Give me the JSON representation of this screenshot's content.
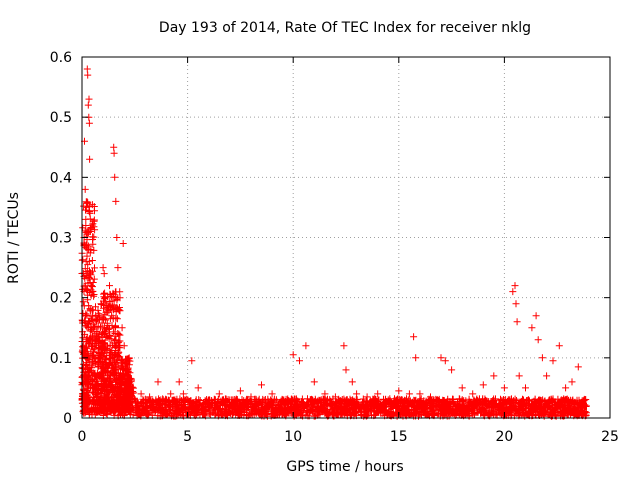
{
  "chart_data": {
    "type": "scatter",
    "title": "Day 193 of 2014, Rate Of TEC Index for receiver nklg",
    "xlabel": "GPS time / hours",
    "ylabel": "ROTI / TECUs",
    "xlim": [
      0,
      25
    ],
    "ylim": [
      0,
      0.6
    ],
    "x_ticks": [
      "0",
      "5",
      "10",
      "15",
      "20",
      "25"
    ],
    "y_ticks": [
      "0",
      "0.1",
      "0.2",
      "0.3",
      "0.4",
      "0.5",
      "0.6"
    ],
    "x_tick_values": [
      0,
      5,
      10,
      15,
      20,
      25
    ],
    "y_tick_values": [
      0,
      0.1,
      0.2,
      0.3,
      0.4,
      0.5,
      0.6
    ],
    "grid": true,
    "marker": "+",
    "marker_color": "#ff0000",
    "series": [
      {
        "values": [
          [
            0.05,
            0.04
          ],
          [
            0.08,
            0.12
          ],
          [
            0.1,
            0.3
          ],
          [
            0.12,
            0.46
          ],
          [
            0.15,
            0.38
          ],
          [
            0.18,
            0.32
          ],
          [
            0.2,
            0.26
          ],
          [
            0.22,
            0.35
          ],
          [
            0.25,
            0.58
          ],
          [
            0.27,
            0.57
          ],
          [
            0.3,
            0.52
          ],
          [
            0.32,
            0.5
          ],
          [
            0.33,
            0.53
          ],
          [
            0.35,
            0.49
          ],
          [
            0.36,
            0.43
          ],
          [
            0.38,
            0.34
          ],
          [
            0.4,
            0.31
          ],
          [
            0.42,
            0.28
          ],
          [
            0.45,
            0.22
          ],
          [
            0.48,
            0.18
          ],
          [
            0.5,
            0.21
          ],
          [
            0.55,
            0.15
          ],
          [
            0.6,
            0.12
          ],
          [
            0.65,
            0.1
          ],
          [
            0.7,
            0.14
          ],
          [
            0.75,
            0.09
          ],
          [
            0.8,
            0.07
          ],
          [
            0.9,
            0.19
          ],
          [
            1.0,
            0.25
          ],
          [
            1.05,
            0.24
          ],
          [
            1.1,
            0.2
          ],
          [
            1.2,
            0.18
          ],
          [
            1.3,
            0.22
          ],
          [
            1.4,
            0.17
          ],
          [
            1.5,
            0.45
          ],
          [
            1.52,
            0.44
          ],
          [
            1.55,
            0.4
          ],
          [
            1.6,
            0.36
          ],
          [
            1.65,
            0.3
          ],
          [
            1.7,
            0.25
          ],
          [
            1.8,
            0.2
          ],
          [
            1.9,
            0.15
          ],
          [
            1.95,
            0.29
          ],
          [
            2.0,
            0.12
          ],
          [
            2.1,
            0.09
          ],
          [
            2.2,
            0.07
          ],
          [
            2.4,
            0.05
          ],
          [
            2.8,
            0.04
          ],
          [
            3.2,
            0.035
          ],
          [
            3.5,
            0.03
          ],
          [
            3.6,
            0.06
          ],
          [
            4.0,
            0.03
          ],
          [
            4.2,
            0.04
          ],
          [
            4.4,
            0.03
          ],
          [
            4.6,
            0.06
          ],
          [
            4.8,
            0.04
          ],
          [
            5.0,
            0.03
          ],
          [
            5.2,
            0.095
          ],
          [
            5.5,
            0.05
          ],
          [
            6.0,
            0.03
          ],
          [
            6.5,
            0.04
          ],
          [
            7.0,
            0.03
          ],
          [
            7.5,
            0.045
          ],
          [
            8.0,
            0.035
          ],
          [
            8.5,
            0.055
          ],
          [
            9.0,
            0.04
          ],
          [
            9.5,
            0.03
          ],
          [
            10.0,
            0.105
          ],
          [
            10.3,
            0.095
          ],
          [
            10.6,
            0.12
          ],
          [
            11.0,
            0.06
          ],
          [
            11.5,
            0.04
          ],
          [
            12.0,
            0.035
          ],
          [
            12.4,
            0.12
          ],
          [
            12.5,
            0.08
          ],
          [
            12.8,
            0.06
          ],
          [
            13.0,
            0.04
          ],
          [
            13.5,
            0.035
          ],
          [
            14.0,
            0.04
          ],
          [
            14.5,
            0.03
          ],
          [
            15.0,
            0.045
          ],
          [
            15.5,
            0.04
          ],
          [
            15.7,
            0.135
          ],
          [
            15.8,
            0.1
          ],
          [
            16.0,
            0.04
          ],
          [
            16.5,
            0.035
          ],
          [
            17.0,
            0.1
          ],
          [
            17.2,
            0.095
          ],
          [
            17.5,
            0.08
          ],
          [
            18.0,
            0.05
          ],
          [
            18.5,
            0.04
          ],
          [
            19.0,
            0.055
          ],
          [
            19.5,
            0.07
          ],
          [
            20.0,
            0.05
          ],
          [
            20.4,
            0.21
          ],
          [
            20.5,
            0.22
          ],
          [
            20.55,
            0.19
          ],
          [
            20.6,
            0.16
          ],
          [
            20.7,
            0.07
          ],
          [
            21.0,
            0.05
          ],
          [
            21.3,
            0.15
          ],
          [
            21.5,
            0.17
          ],
          [
            21.6,
            0.13
          ],
          [
            21.8,
            0.1
          ],
          [
            22.0,
            0.07
          ],
          [
            22.3,
            0.095
          ],
          [
            22.6,
            0.12
          ],
          [
            22.9,
            0.05
          ],
          [
            23.2,
            0.06
          ],
          [
            23.5,
            0.085
          ],
          [
            23.8,
            0.03
          ]
        ]
      }
    ],
    "noise_band": {
      "description_hidden": false,
      "x_start": 0,
      "x_end": 23.9,
      "y_low": 0.003,
      "y_high": 0.032
    }
  }
}
